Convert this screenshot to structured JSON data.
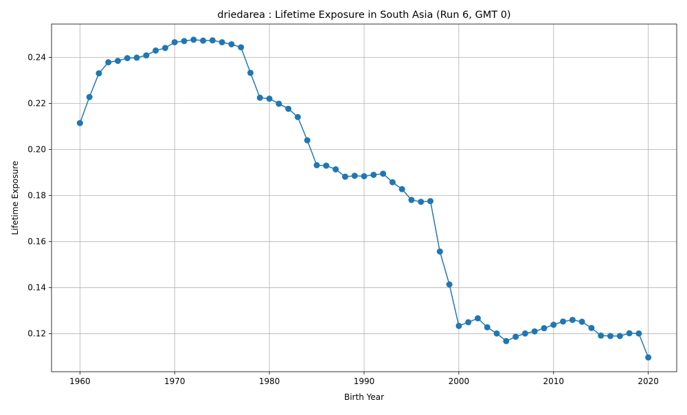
{
  "chart_data": {
    "type": "line",
    "title": "driedarea : Lifetime Exposure in South Asia (Run 6, GMT 0)",
    "xlabel": "Birth Year",
    "ylabel": "Lifetime Exposure",
    "xlim": [
      1957,
      2023
    ],
    "ylim": [
      0.1035,
      0.2545
    ],
    "xticks": [
      1960,
      1970,
      1980,
      1990,
      2000,
      2010,
      2020
    ],
    "xtick_labels": [
      "1960",
      "1970",
      "1980",
      "1990",
      "2000",
      "2010",
      "2020"
    ],
    "yticks": [
      0.12,
      0.14,
      0.16,
      0.18,
      0.2,
      0.22,
      0.24
    ],
    "ytick_labels": [
      "0.12",
      "0.14",
      "0.16",
      "0.18",
      "0.20",
      "0.22",
      "0.24"
    ],
    "grid": true,
    "marker": "circle",
    "color": "#1f77b4",
    "series": [
      {
        "x": [
          1960,
          1961,
          1962,
          1963,
          1964,
          1965,
          1966,
          1967,
          1968,
          1969,
          1970,
          1971,
          1972,
          1973,
          1974,
          1975,
          1976,
          1977,
          1978,
          1979,
          1980,
          1981,
          1982,
          1983,
          1984,
          1985,
          1986,
          1987,
          1988,
          1989,
          1990,
          1991,
          1992,
          1993,
          1994,
          1995,
          1996,
          1997,
          1998,
          1999,
          2000,
          2001,
          2002,
          2003,
          2004,
          2005,
          2006,
          2007,
          2008,
          2009,
          2010,
          2011,
          2012,
          2013,
          2014,
          2015,
          2016,
          2017,
          2018,
          2019,
          2020
        ],
        "y": [
          0.2115,
          0.2228,
          0.2331,
          0.2379,
          0.2385,
          0.2397,
          0.2399,
          0.2409,
          0.243,
          0.2441,
          0.2466,
          0.2471,
          0.2477,
          0.2473,
          0.2474,
          0.2466,
          0.2457,
          0.2444,
          0.2333,
          0.2225,
          0.2221,
          0.2199,
          0.2177,
          0.2141,
          0.204,
          0.1932,
          0.193,
          0.1914,
          0.1882,
          0.1886,
          0.1884,
          0.189,
          0.1895,
          0.1858,
          0.1828,
          0.1781,
          0.1773,
          0.1776,
          0.1557,
          0.1414,
          0.1234,
          0.125,
          0.1267,
          0.1228,
          0.1201,
          0.1168,
          0.1187,
          0.1201,
          0.121,
          0.1224,
          0.1239,
          0.1253,
          0.126,
          0.1252,
          0.1225,
          0.1192,
          0.119,
          0.119,
          0.1202,
          0.1201,
          0.1097
        ]
      }
    ]
  }
}
